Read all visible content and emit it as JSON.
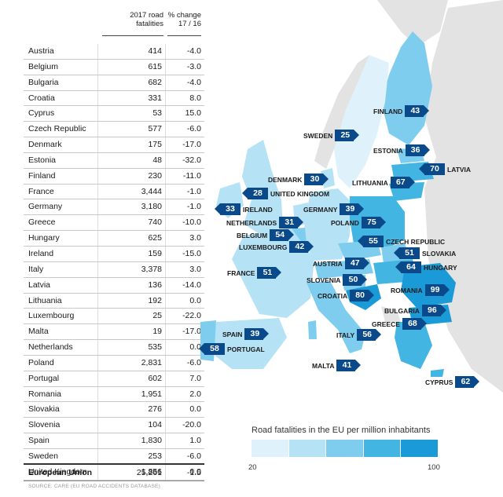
{
  "table": {
    "header_value": [
      "2017 road",
      "fatalities"
    ],
    "header_change": [
      "% change",
      "17 / 16"
    ],
    "rows": [
      {
        "country": "Austria",
        "value": "414",
        "change": "-4.0"
      },
      {
        "country": "Belgium",
        "value": "615",
        "change": "-3.0"
      },
      {
        "country": "Bulgaria",
        "value": "682",
        "change": "-4.0"
      },
      {
        "country": "Croatia",
        "value": "331",
        "change": "8.0"
      },
      {
        "country": "Cyprus",
        "value": "53",
        "change": "15.0"
      },
      {
        "country": "Czech Republic",
        "value": "577",
        "change": "-6.0"
      },
      {
        "country": "Denmark",
        "value": "175",
        "change": "-17.0"
      },
      {
        "country": "Estonia",
        "value": "48",
        "change": "-32.0"
      },
      {
        "country": "Finland",
        "value": "230",
        "change": "-11.0"
      },
      {
        "country": "France",
        "value": "3,444",
        "change": "-1.0"
      },
      {
        "country": "Germany",
        "value": "3,180",
        "change": "-1.0"
      },
      {
        "country": "Greece",
        "value": "740",
        "change": "-10.0"
      },
      {
        "country": "Hungary",
        "value": "625",
        "change": "3.0"
      },
      {
        "country": "Ireland",
        "value": "159",
        "change": "-15.0"
      },
      {
        "country": "Italy",
        "value": "3,378",
        "change": "3.0"
      },
      {
        "country": "Latvia",
        "value": "136",
        "change": "-14.0"
      },
      {
        "country": "Lithuania",
        "value": "192",
        "change": "0.0"
      },
      {
        "country": "Luxembourg",
        "value": "25",
        "change": "-22.0"
      },
      {
        "country": "Malta",
        "value": "19",
        "change": "-17.0"
      },
      {
        "country": "Netherlands",
        "value": "535",
        "change": "0.0"
      },
      {
        "country": "Poland",
        "value": "2,831",
        "change": "-6.0"
      },
      {
        "country": "Portugal",
        "value": "602",
        "change": "7.0"
      },
      {
        "country": "Romania",
        "value": "1,951",
        "change": "2.0"
      },
      {
        "country": "Slovakia",
        "value": "276",
        "change": "0.0"
      },
      {
        "country": "Slovenia",
        "value": "104",
        "change": "-20.0"
      },
      {
        "country": "Spain",
        "value": "1,830",
        "change": "1.0"
      },
      {
        "country": "Sweden",
        "value": "253",
        "change": "-6.0"
      },
      {
        "country": "United Kingdom",
        "value": "1,856",
        "change": "0.0"
      }
    ],
    "total": {
      "country": "European Union",
      "value": "25,261",
      "change": "-1.5"
    },
    "source": "SOURCE: CARE (EU ROAD ACCIDENTS DATABASE)"
  },
  "map": {
    "labels": [
      {
        "country": "FINLAND",
        "value": "43"
      },
      {
        "country": "SWEDEN",
        "value": "25"
      },
      {
        "country": "ESTONIA",
        "value": "36"
      },
      {
        "country": "LATVIA",
        "value": "70"
      },
      {
        "country": "DENMARK",
        "value": "30"
      },
      {
        "country": "LITHUANIA",
        "value": "67"
      },
      {
        "country": "UNITED KINGDOM",
        "value": "28"
      },
      {
        "country": "IRELAND",
        "value": "33"
      },
      {
        "country": "GERMANY",
        "value": "39"
      },
      {
        "country": "NETHERLANDS",
        "value": "31"
      },
      {
        "country": "POLAND",
        "value": "75"
      },
      {
        "country": "BELGIUM",
        "value": "54"
      },
      {
        "country": "CZECH REPUBLIC",
        "value": "55"
      },
      {
        "country": "LUXEMBOURG",
        "value": "42"
      },
      {
        "country": "SLOVAKIA",
        "value": "51"
      },
      {
        "country": "AUSTRIA",
        "value": "47"
      },
      {
        "country": "HUNGARY",
        "value": "64"
      },
      {
        "country": "FRANCE",
        "value": "51"
      },
      {
        "country": "SLOVENIA",
        "value": "50"
      },
      {
        "country": "ROMANIA",
        "value": "99"
      },
      {
        "country": "CROATIA",
        "value": "80"
      },
      {
        "country": "BULGARIA",
        "value": "96"
      },
      {
        "country": "GREECE",
        "value": "68"
      },
      {
        "country": "SPAIN",
        "value": "39"
      },
      {
        "country": "ITALY",
        "value": "56"
      },
      {
        "country": "PORTUGAL",
        "value": "58"
      },
      {
        "country": "MALTA",
        "value": "41"
      },
      {
        "country": "CYPRUS",
        "value": "62"
      }
    ]
  },
  "legend": {
    "title": "Road fatalities in the EU per million inhabitants",
    "min": "20",
    "max": "100",
    "colors": [
      "#dff2fb",
      "#b5e2f5",
      "#7fcdee",
      "#42b5e3",
      "#1a9ad6"
    ]
  },
  "colors": {
    "label_box": "#0b4a8a",
    "non_eu_land": "#e3e3e3"
  }
}
